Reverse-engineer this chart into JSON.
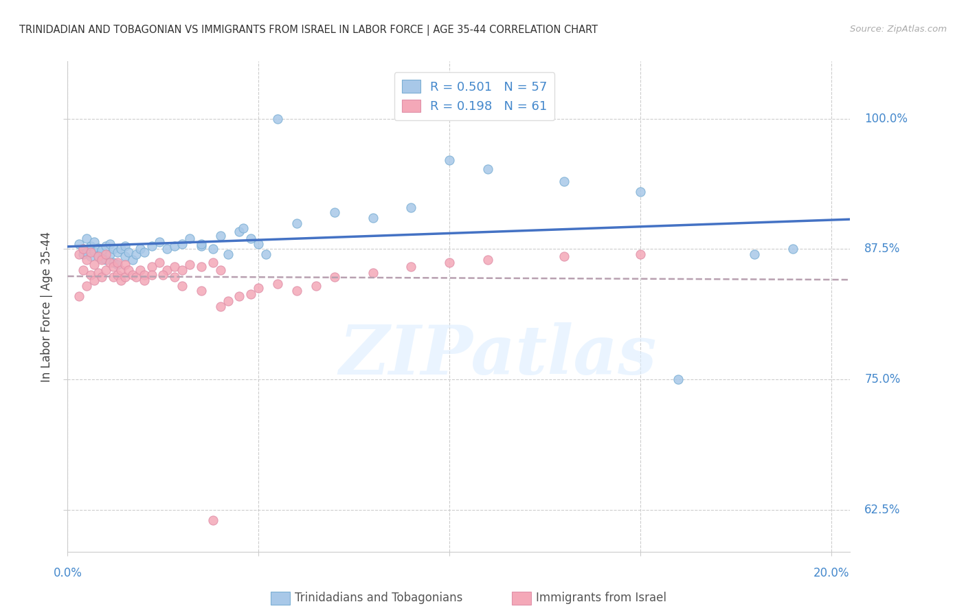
{
  "title": "TRINIDADIAN AND TOBAGONIAN VS IMMIGRANTS FROM ISRAEL IN LABOR FORCE | AGE 35-44 CORRELATION CHART",
  "source": "Source: ZipAtlas.com",
  "ylabel": "In Labor Force | Age 35-44",
  "ytick_labels": [
    "62.5%",
    "75.0%",
    "87.5%",
    "100.0%"
  ],
  "ytick_values": [
    0.625,
    0.75,
    0.875,
    1.0
  ],
  "xlim": [
    0.0,
    0.205
  ],
  "ylim": [
    0.585,
    1.055
  ],
  "watermark_text": "ZIPatlas",
  "blue_color": "#a8c8e8",
  "pink_color": "#f4a8b8",
  "line_blue": "#4472c4",
  "line_pink": "#c0a0b0",
  "line_pink_style": "--",
  "label1": "Trinidadians and Tobagonians",
  "label2": "Immigrants from Israel",
  "blue_x": [
    0.003,
    0.004,
    0.004,
    0.005,
    0.005,
    0.006,
    0.006,
    0.007,
    0.007,
    0.008,
    0.008,
    0.009,
    0.009,
    0.01,
    0.01,
    0.011,
    0.011,
    0.012,
    0.012,
    0.013,
    0.013,
    0.014,
    0.015,
    0.015,
    0.016,
    0.017,
    0.018,
    0.019,
    0.02,
    0.022,
    0.024,
    0.026,
    0.028,
    0.03,
    0.032,
    0.035,
    0.04,
    0.045,
    0.05,
    0.06,
    0.07,
    0.08,
    0.09,
    0.1,
    0.11,
    0.13,
    0.15,
    0.16,
    0.18,
    0.19,
    0.046,
    0.048,
    0.052,
    0.035,
    0.038,
    0.042,
    0.055
  ],
  "blue_y": [
    0.88,
    0.875,
    0.87,
    0.885,
    0.872,
    0.878,
    0.868,
    0.882,
    0.873,
    0.876,
    0.869,
    0.874,
    0.866,
    0.878,
    0.865,
    0.88,
    0.87,
    0.875,
    0.862,
    0.872,
    0.86,
    0.875,
    0.868,
    0.878,
    0.872,
    0.865,
    0.87,
    0.875,
    0.872,
    0.878,
    0.882,
    0.875,
    0.878,
    0.88,
    0.885,
    0.878,
    0.888,
    0.892,
    0.88,
    0.9,
    0.91,
    0.905,
    0.915,
    0.96,
    0.952,
    0.94,
    0.93,
    0.75,
    0.87,
    0.875,
    0.895,
    0.885,
    0.87,
    0.88,
    0.875,
    0.87,
    1.0
  ],
  "pink_x": [
    0.003,
    0.003,
    0.004,
    0.004,
    0.005,
    0.005,
    0.006,
    0.006,
    0.007,
    0.007,
    0.008,
    0.008,
    0.009,
    0.009,
    0.01,
    0.01,
    0.011,
    0.012,
    0.012,
    0.013,
    0.013,
    0.014,
    0.014,
    0.015,
    0.015,
    0.016,
    0.017,
    0.018,
    0.019,
    0.02,
    0.022,
    0.024,
    0.026,
    0.028,
    0.03,
    0.032,
    0.035,
    0.038,
    0.04,
    0.042,
    0.045,
    0.048,
    0.05,
    0.055,
    0.06,
    0.065,
    0.07,
    0.08,
    0.09,
    0.1,
    0.11,
    0.13,
    0.15,
    0.04,
    0.025,
    0.02,
    0.03,
    0.035,
    0.022,
    0.028,
    0.038
  ],
  "pink_y": [
    0.87,
    0.83,
    0.875,
    0.855,
    0.865,
    0.84,
    0.872,
    0.85,
    0.86,
    0.845,
    0.868,
    0.852,
    0.865,
    0.848,
    0.87,
    0.855,
    0.862,
    0.858,
    0.848,
    0.862,
    0.85,
    0.855,
    0.845,
    0.86,
    0.848,
    0.855,
    0.85,
    0.848,
    0.855,
    0.85,
    0.858,
    0.862,
    0.855,
    0.858,
    0.855,
    0.86,
    0.858,
    0.862,
    0.855,
    0.825,
    0.83,
    0.832,
    0.838,
    0.842,
    0.835,
    0.84,
    0.848,
    0.852,
    0.858,
    0.862,
    0.865,
    0.868,
    0.87,
    0.82,
    0.85,
    0.845,
    0.84,
    0.835,
    0.85,
    0.848,
    0.615
  ]
}
